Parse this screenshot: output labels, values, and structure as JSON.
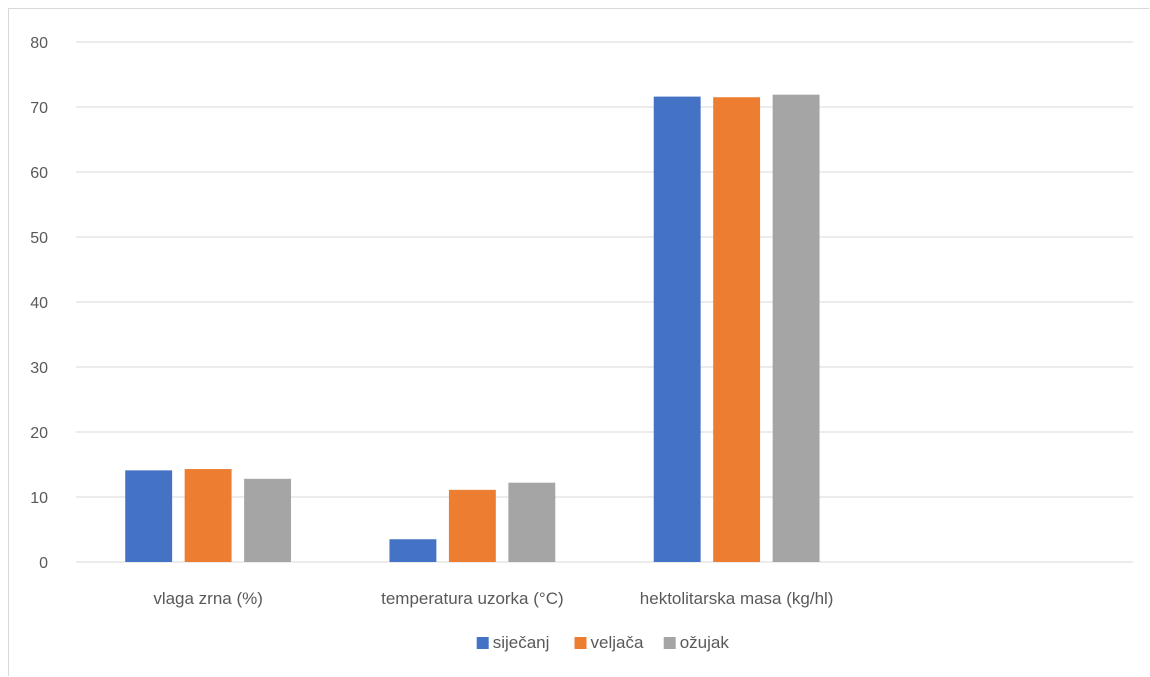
{
  "chart_data": {
    "type": "bar",
    "title": "",
    "xlabel": "",
    "ylabel": "",
    "ylim": [
      0,
      80
    ],
    "yticks": [
      0,
      10,
      20,
      30,
      40,
      50,
      60,
      70,
      80
    ],
    "grid": true,
    "legend_position": "bottom",
    "categories": [
      "vlaga zrna (%)",
      "temperatura uzorka (°C)",
      "hektolitarska masa (kg/hl)",
      ""
    ],
    "series": [
      {
        "name": "siječanj",
        "color": "#4472C4",
        "values": [
          14.1,
          3.5,
          71.6,
          null
        ]
      },
      {
        "name": "veljača",
        "color": "#ED7D31",
        "values": [
          14.3,
          11.1,
          71.5,
          null
        ]
      },
      {
        "name": "ožujak",
        "color": "#A5A5A5",
        "values": [
          12.8,
          12.2,
          71.9,
          null
        ]
      }
    ]
  }
}
